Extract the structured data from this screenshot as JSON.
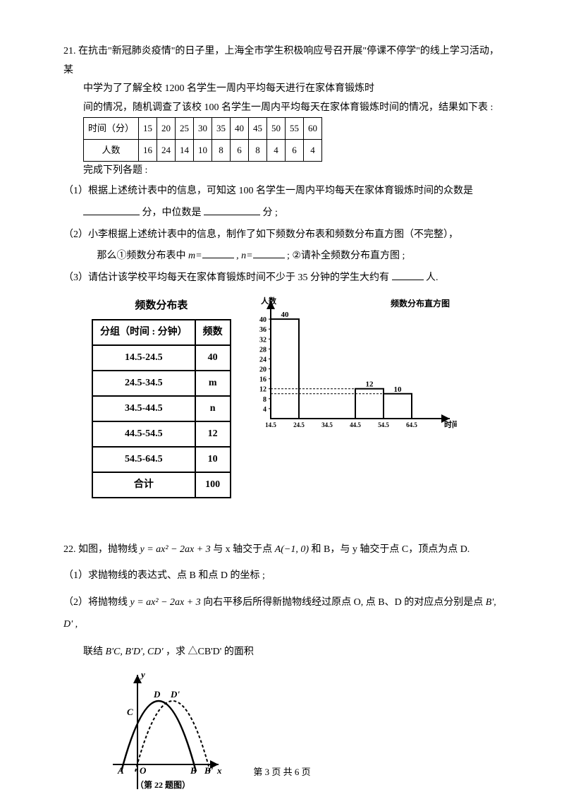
{
  "q21": {
    "number": "21.",
    "line1": "在抗击\"新冠肺炎疫情\"的日子里，上海全市学生积极响应号召开展\"停课不停学\"的线上学习活动，某",
    "line2": "中学为了了解全校 1200 名学生一周内平均每天进行在家体育锻炼时",
    "line3": "间的情况，随机调查了该校 100 名学生一周内平均每天在家体育锻炼时间的情况，结果如下表 :",
    "table1": {
      "row1_label": "时间（分）",
      "row1": [
        "15",
        "20",
        "25",
        "30",
        "35",
        "40",
        "45",
        "50",
        "55",
        "60"
      ],
      "row2_label": "人数",
      "row2": [
        "16",
        "24",
        "14",
        "10",
        "8",
        "6",
        "8",
        "4",
        "6",
        "4"
      ]
    },
    "line4": "完成下列各题 :",
    "sub1_a": "（1）根据上述统计表中的信息，可知这 100 名学生一周内平均每天在家体育锻炼时间的众数是",
    "sub1_b_mid": "分，中位数是",
    "sub1_b_end": "分 ;",
    "sub2_a": "（2）小李根据上述统计表中的信息，制作了如下频数分布表和频数分布直方图（不完整），",
    "sub2_b_pre": "那么①频数分布表中 ",
    "sub2_b_m": "m=",
    "sub2_b_comma": ",  ",
    "sub2_b_n": "n=",
    "sub2_b_post": " ;  ②请补全频数分布直方图 ;",
    "sub3_pre": "（3）请估计该学校平均每天在家体育锻炼时间不少于 35 分钟的学生大约有",
    "sub3_post": "人.",
    "freq_table": {
      "title": "频数分布表",
      "headers": [
        "分组（时间 : 分钟）",
        "频数"
      ],
      "rows": [
        [
          "14.5-24.5",
          "40"
        ],
        [
          "24.5-34.5",
          "m"
        ],
        [
          "34.5-44.5",
          "n"
        ],
        [
          "44.5-54.5",
          "12"
        ],
        [
          "54.5-64.5",
          "10"
        ],
        [
          "合计",
          "100"
        ]
      ]
    },
    "histogram": {
      "title": "频数分布直方图",
      "ylabel": "人数",
      "xlabel": "时间(分)",
      "yticks": [
        4,
        8,
        12,
        16,
        20,
        24,
        28,
        32,
        36,
        40
      ],
      "ymax": 44,
      "xticks": [
        "14.5",
        "24.5",
        "34.5",
        "44.5",
        "54.5",
        "64.5"
      ],
      "bars": [
        {
          "x": 0,
          "value": 40,
          "label": "40"
        },
        {
          "x": 3,
          "value": 12,
          "label": "12"
        },
        {
          "x": 4,
          "value": 10,
          "label": "10"
        }
      ],
      "axis_color": "#000000",
      "bar_color": "#ffffff",
      "bar_border": "#000000"
    }
  },
  "q22": {
    "number": "22.",
    "line1_a": "如图，抛物线 ",
    "formula1": "y = ax² − 2ax + 3",
    "line1_b": " 与 x 轴交于点 ",
    "pointA": "A(−1, 0)",
    "line1_c": " 和 B，与 y 轴交于点 C，顶点为点 D.",
    "sub1": "（1）求抛物线的表达式、点 B 和点 D 的坐标 ;",
    "sub2_a": "（2）将抛物线 ",
    "sub2_b": " 向右平移后所得新抛物线经过原点 O, 点 B、D 的对应点分别是点 ",
    "sub2_c": "B', D' ,",
    "sub2_d": "联结 ",
    "sub2_e": "B'C, B'D', CD'",
    "sub2_f": "，求 △CB'D' 的面积",
    "fig_caption": "（第 22 题图）",
    "fig_labels": {
      "y": "y",
      "x": "x",
      "A": "A",
      "O": "O",
      "B": "B",
      "Bp": "B'",
      "C": "C",
      "D": "D",
      "Dp": "D'"
    }
  },
  "footer": {
    "pre": "第 ",
    "cur": "3",
    "mid": " 页 共 ",
    "total": "6",
    "post": " 页"
  }
}
